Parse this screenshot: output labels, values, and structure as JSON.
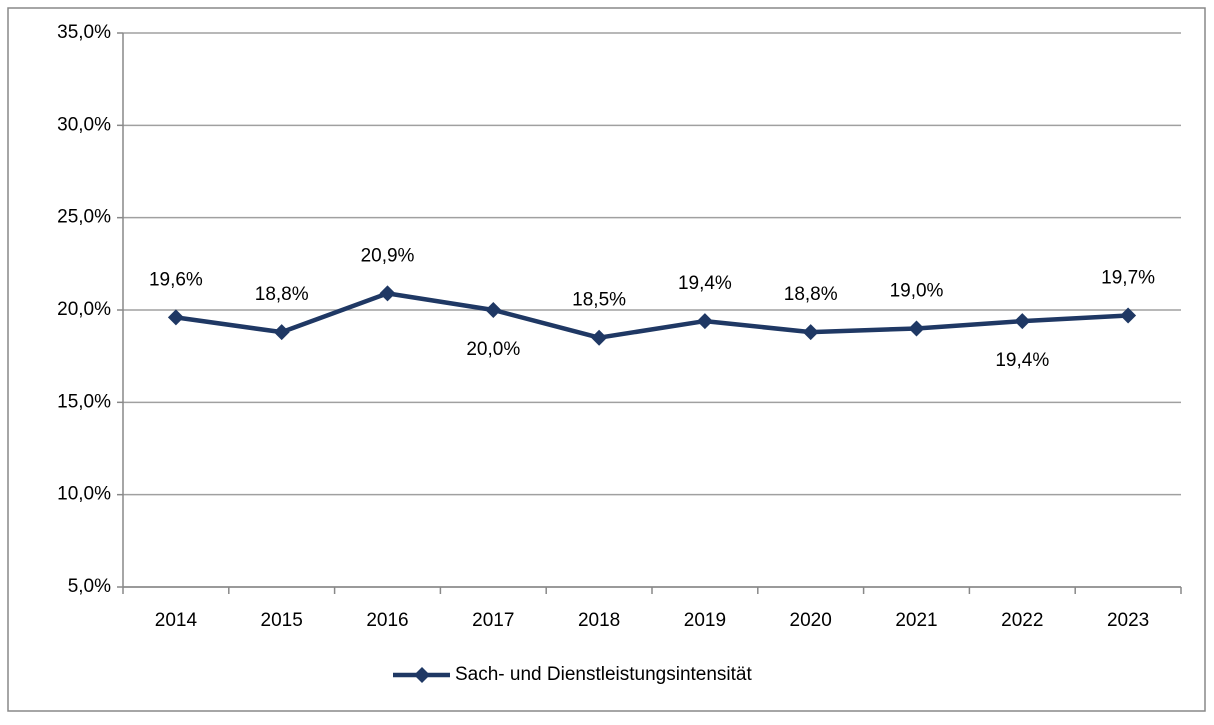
{
  "chart_data": {
    "type": "line",
    "categories": [
      "2014",
      "2015",
      "2016",
      "2017",
      "2018",
      "2019",
      "2020",
      "2021",
      "2022",
      "2023"
    ],
    "series": [
      {
        "name": "Sach- und Dienstleistungsintensität",
        "color": "#1f3864",
        "values": [
          19.6,
          18.8,
          20.9,
          20.0,
          18.5,
          19.4,
          18.8,
          19.0,
          19.4,
          19.7
        ],
        "value_labels": [
          "19,6%",
          "18,8%",
          "20,9%",
          "20,0%",
          "18,5%",
          "19,4%",
          "18,8%",
          "19,0%",
          "19,4%",
          "19,7%"
        ]
      }
    ],
    "ylim": [
      5,
      35
    ],
    "yticks": [
      {
        "value": 5,
        "label": "5,0%"
      },
      {
        "value": 10,
        "label": "10,0%"
      },
      {
        "value": 15,
        "label": "15,0%"
      },
      {
        "value": 20,
        "label": "20,0%"
      },
      {
        "value": 25,
        "label": "25,0%"
      },
      {
        "value": 30,
        "label": "30,0%"
      },
      {
        "value": 35,
        "label": "35,0%"
      }
    ],
    "grid": true,
    "legend": "bottom"
  }
}
